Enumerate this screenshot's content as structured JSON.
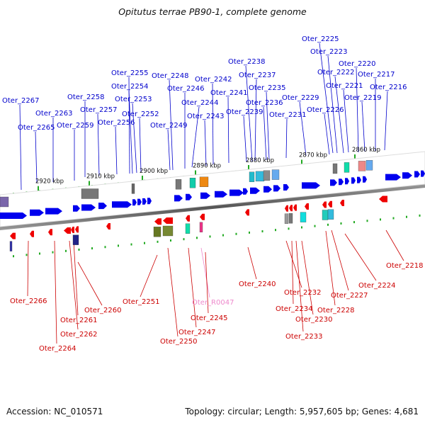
{
  "title": "Opitutus terrae PB90-1, complete genome",
  "footer": {
    "accession": "Accession: NC_010571",
    "summary": "Topology: circular; Length: 5,957,605 bp; Genes: 4,681"
  },
  "colors": {
    "forward_gene": "#0000ee",
    "reverse_gene": "#ee0000",
    "forward_label": "#0000cc",
    "reverse_label": "#cc0000",
    "ncrna_label": "#ee88cc",
    "backbone": "#666666",
    "tick": "#22aa22"
  },
  "kbp_ticks": [
    "2920 kbp",
    "2910 kbp",
    "2900 kbp",
    "2890 kbp",
    "2880 kbp",
    "2870 kbp",
    "2860 kbp"
  ],
  "forward_labels": [
    "Oter_2267",
    "Oter_2265",
    "Oter_2263",
    "Oter_2259",
    "Oter_2258",
    "Oter_2257",
    "Oter_2256",
    "Oter_2255",
    "Oter_2254",
    "Oter_2253",
    "Oter_2252",
    "Oter_2249",
    "Oter_2248",
    "Oter_2246",
    "Oter_2244",
    "Oter_2243",
    "Oter_2242",
    "Oter_2241",
    "Oter_2239",
    "Oter_2238",
    "Oter_2237",
    "Oter_2236",
    "Oter_2235",
    "Oter_2231",
    "Oter_2229",
    "Oter_2226",
    "Oter_2225",
    "Oter_2223",
    "Oter_2222",
    "Oter_2221",
    "Oter_2220",
    "Oter_2219",
    "Oter_2217",
    "Oter_2216"
  ],
  "reverse_labels": [
    "Oter_2266",
    "Oter_2264",
    "Oter_2262",
    "Oter_2261",
    "Oter_2260",
    "Oter_2251",
    "Oter_2250",
    "Oter_2247",
    "Oter_R0047",
    "Oter_2245",
    "Oter_2240",
    "Oter_2234",
    "Oter_2233",
    "Oter_2232",
    "Oter_2230",
    "Oter_2228",
    "Oter_2227",
    "Oter_2224",
    "Oter_2218"
  ]
}
